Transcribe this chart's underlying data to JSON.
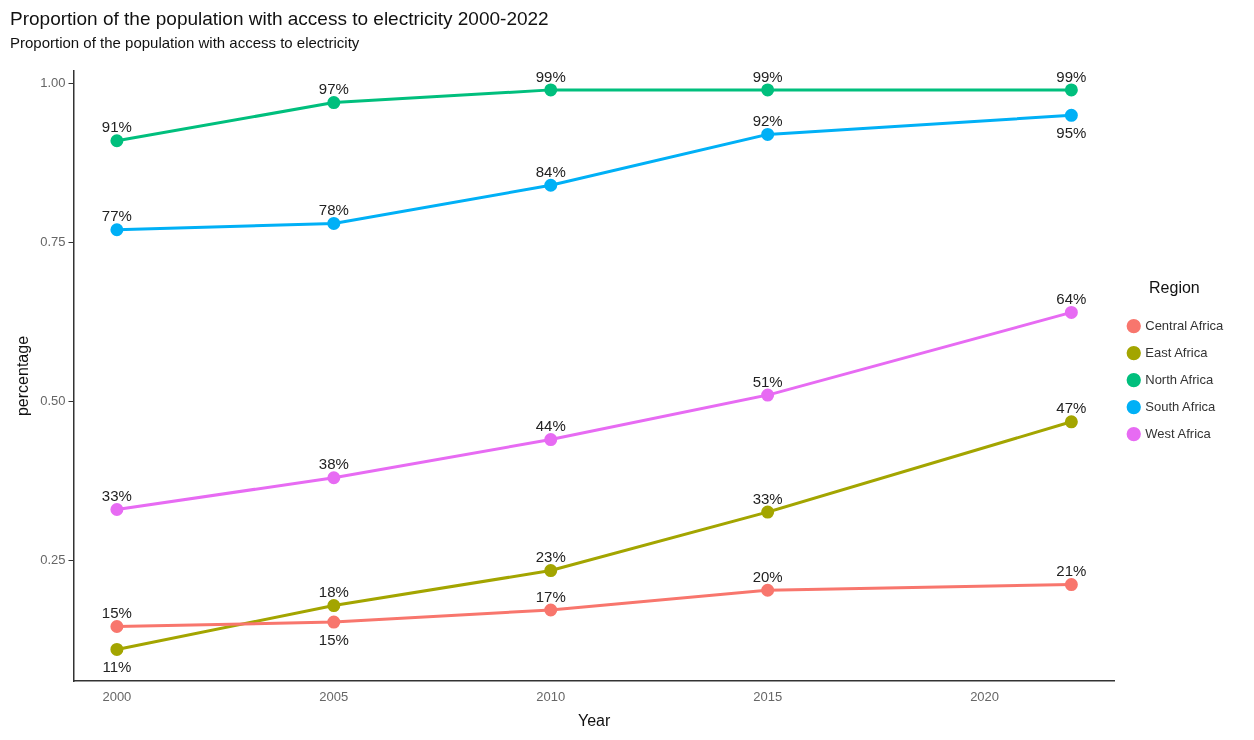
{
  "chart_data": {
    "type": "line",
    "title": "Proportion of the population with access to electricity 2000-2022",
    "subtitle": "Proportion of the population with access to electricity",
    "xlabel": "Year",
    "ylabel": "percentage",
    "legend_title": "Region",
    "legend": "right",
    "grid": false,
    "marker": "circle",
    "line_style": "solid",
    "x": [
      2000,
      2005,
      2010,
      2015,
      2022
    ],
    "xlim": [
      1999,
      2023
    ],
    "xticks": [
      2000,
      2005,
      2010,
      2015,
      2020
    ],
    "ylim": [
      0.06,
      1.02
    ],
    "yticks": [
      0.25,
      {
        "value": 0.5,
        "label": "0.50"
      },
      0.75,
      {
        "value": 1,
        "label": "1.00"
      }
    ],
    "series": [
      {
        "name": "Central Africa",
        "color": "#f8766d",
        "values": [
          0.146,
          0.153,
          0.172,
          0.203,
          0.212
        ],
        "value_labels": [
          "15%",
          "15%",
          "17%",
          "20%",
          "21%"
        ]
      },
      {
        "name": "East Africa",
        "color": "#a3a500",
        "values": [
          0.11,
          0.179,
          0.234,
          0.326,
          0.468
        ],
        "value_labels": [
          "11%",
          "18%",
          "23%",
          "33%",
          "47%"
        ]
      },
      {
        "name": "North Africa",
        "color": "#00bf7d",
        "values": [
          0.91,
          0.97,
          0.99,
          0.99,
          0.99
        ],
        "value_labels": [
          "91%",
          "97%",
          "99%",
          "99%",
          "99%"
        ]
      },
      {
        "name": "South Africa",
        "color": "#00b0f6",
        "values": [
          0.77,
          0.78,
          0.84,
          0.92,
          0.95
        ],
        "value_labels": [
          "77%",
          "78%",
          "84%",
          "92%",
          "95%"
        ]
      },
      {
        "name": "West Africa",
        "color": "#e76bf3",
        "values": [
          0.33,
          0.38,
          0.44,
          0.51,
          0.64
        ],
        "value_labels": [
          "33%",
          "38%",
          "44%",
          "51%",
          "64%"
        ]
      }
    ]
  }
}
